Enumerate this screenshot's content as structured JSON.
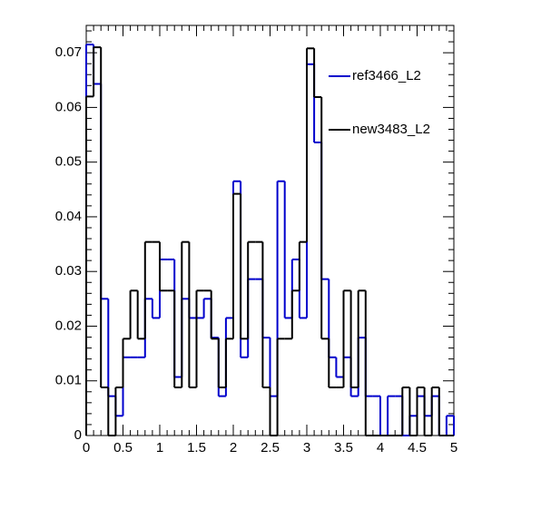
{
  "chart_data": {
    "type": "histogram",
    "bins": [
      0,
      0.1,
      0.2,
      0.3,
      0.4,
      0.5,
      0.6,
      0.7,
      0.8,
      0.9,
      1,
      1.1,
      1.2,
      1.3,
      1.4,
      1.5,
      1.6,
      1.7,
      1.8,
      1.9,
      2,
      2.1,
      2.2,
      2.3,
      2.4,
      2.5,
      2.6,
      2.7,
      2.8,
      2.9,
      3,
      3.1,
      3.2,
      3.3,
      3.4,
      3.5,
      3.6,
      3.7,
      3.8,
      3.9,
      4,
      4.1,
      4.2,
      4.3,
      4.4,
      4.5,
      4.6,
      4.7,
      4.8,
      4.9,
      5
    ],
    "series": [
      {
        "name": "ref3466_L2",
        "color": "#0000cc",
        "values": [
          0.0715,
          0.0643,
          0.025,
          0.0072,
          0.0036,
          0.0143,
          0.0143,
          0.0143,
          0.025,
          0.0215,
          0.0322,
          0.0322,
          0.0107,
          0.025,
          0.0215,
          0.0215,
          0.025,
          0.0179,
          0.0072,
          0.0215,
          0.0465,
          0.0143,
          0.0286,
          0.0286,
          0.0179,
          0.0072,
          0.0465,
          0.0215,
          0.0322,
          0.0215,
          0.0679,
          0.0536,
          0.0286,
          0.0143,
          0.0107,
          0.0143,
          0.0072,
          0.0179,
          0.0072,
          0.0072,
          0,
          0.0072,
          0.0072,
          0,
          0.0036,
          0.0072,
          0.0036,
          0.0072,
          0,
          0.0036
        ]
      },
      {
        "name": "new3483_L2",
        "color": "#000000",
        "values": [
          0.062,
          0.071,
          0.0088,
          0,
          0.0088,
          0.0177,
          0.0265,
          0.0177,
          0.0354,
          0.0354,
          0.0265,
          0.0265,
          0.0088,
          0.0354,
          0.0088,
          0.0265,
          0.0265,
          0.0177,
          0.0088,
          0.0177,
          0.0442,
          0.0177,
          0.0354,
          0.0354,
          0.0088,
          0,
          0.0177,
          0.0177,
          0.0265,
          0.0354,
          0.0708,
          0.0619,
          0.0177,
          0.0088,
          0.0088,
          0.0265,
          0.0088,
          0.0265,
          0,
          0,
          0,
          0,
          0,
          0.0088,
          0,
          0.0088,
          0,
          0.0088,
          0,
          0
        ]
      }
    ],
    "xlim": [
      0,
      5
    ],
    "xticks": [
      0,
      0.5,
      1,
      1.5,
      2,
      2.5,
      3,
      3.5,
      4,
      4.5,
      5
    ],
    "ylim": [
      0,
      0.075
    ],
    "yticks": [
      0,
      0.01,
      0.02,
      0.03,
      0.04,
      0.05,
      0.06,
      0.07
    ]
  }
}
